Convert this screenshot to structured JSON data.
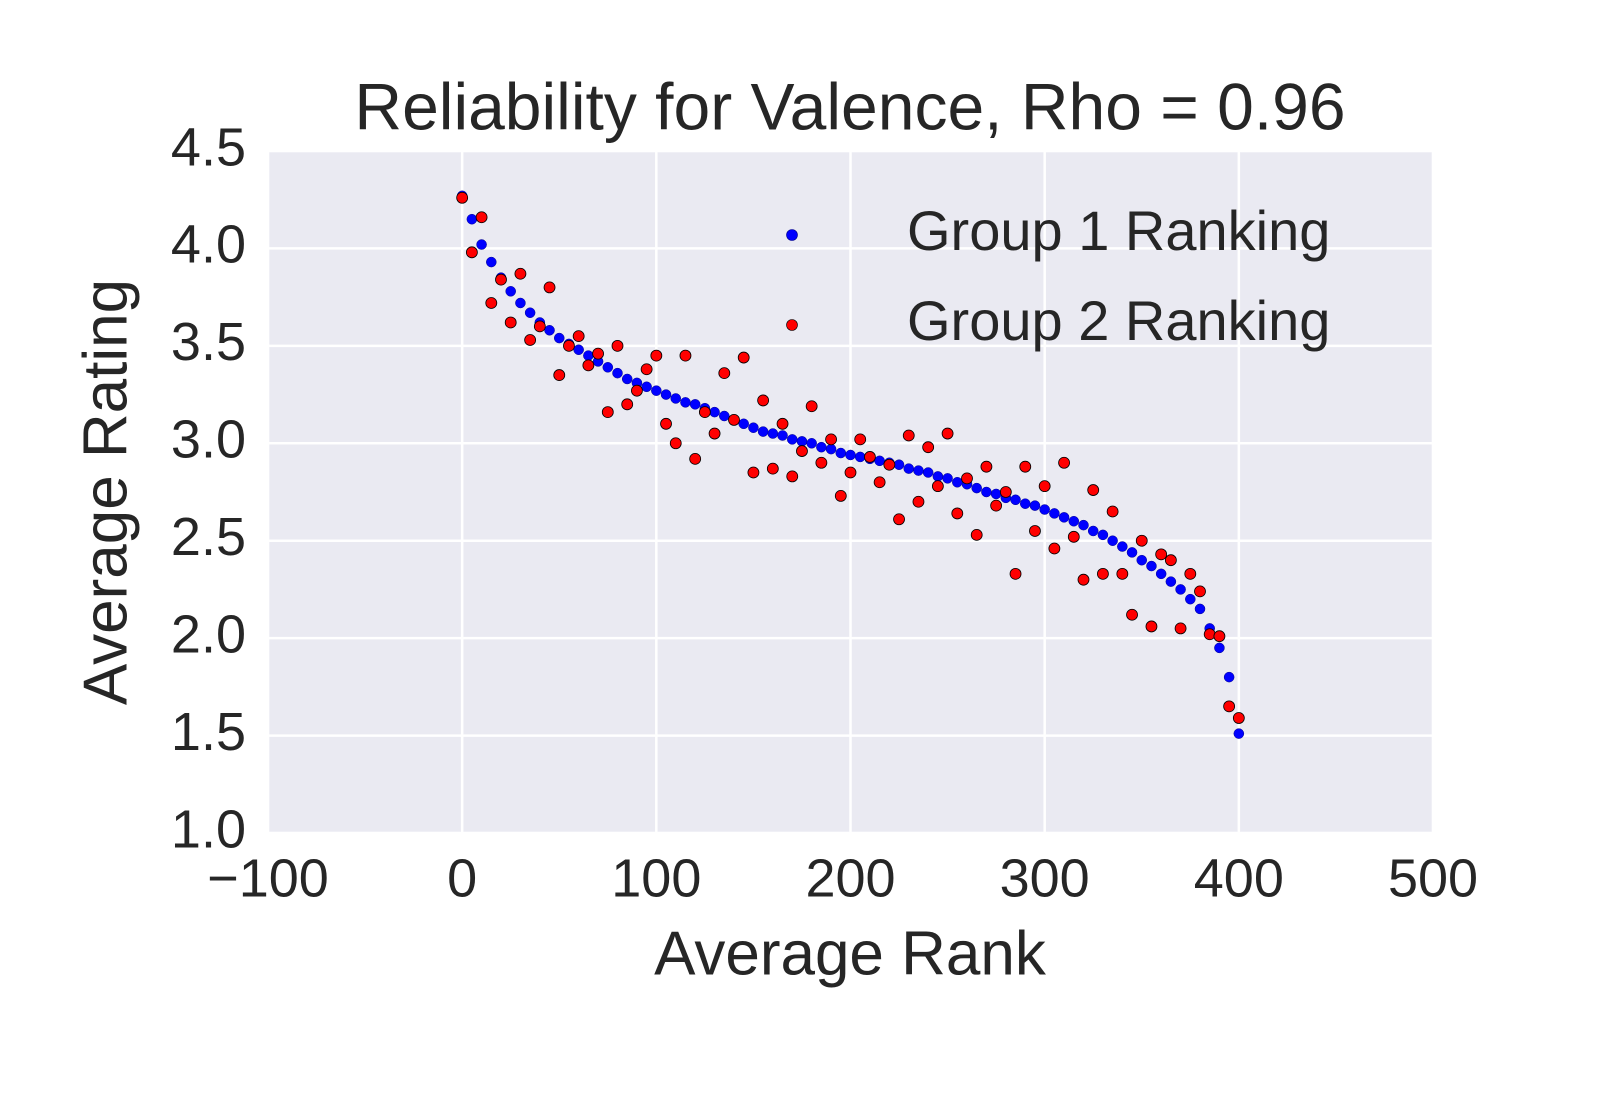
{
  "chart_data": {
    "type": "scatter",
    "title": "Reliability for Valence, Rho = 0.96",
    "x_label": "Average Rank",
    "y_label": "Average Rating",
    "x": [
      0,
      5,
      10,
      15,
      20,
      25,
      30,
      35,
      40,
      45,
      50,
      55,
      60,
      65,
      70,
      75,
      80,
      85,
      90,
      95,
      100,
      105,
      110,
      115,
      120,
      125,
      130,
      135,
      140,
      145,
      150,
      155,
      160,
      165,
      170,
      175,
      180,
      185,
      190,
      195,
      200,
      205,
      210,
      215,
      220,
      225,
      230,
      235,
      240,
      245,
      250,
      255,
      260,
      265,
      270,
      275,
      280,
      285,
      290,
      295,
      300,
      305,
      310,
      315,
      320,
      325,
      330,
      335,
      340,
      345,
      350,
      355,
      360,
      365,
      370,
      375,
      380,
      385,
      390,
      395,
      400
    ],
    "series": [
      {
        "name": "Group 1 Ranking",
        "color": "#0000ff",
        "values": [
          4.27,
          4.15,
          4.02,
          3.93,
          3.85,
          3.78,
          3.72,
          3.67,
          3.62,
          3.58,
          3.54,
          3.51,
          3.48,
          3.45,
          3.42,
          3.39,
          3.36,
          3.33,
          3.31,
          3.29,
          3.27,
          3.25,
          3.23,
          3.21,
          3.2,
          3.18,
          3.16,
          3.14,
          3.12,
          3.1,
          3.08,
          3.06,
          3.05,
          3.04,
          3.02,
          3.01,
          3.0,
          2.98,
          2.97,
          2.95,
          2.94,
          2.93,
          2.92,
          2.91,
          2.9,
          2.89,
          2.87,
          2.86,
          2.85,
          2.83,
          2.82,
          2.8,
          2.79,
          2.77,
          2.75,
          2.74,
          2.72,
          2.71,
          2.69,
          2.68,
          2.66,
          2.64,
          2.62,
          2.6,
          2.58,
          2.55,
          2.53,
          2.5,
          2.47,
          2.44,
          2.4,
          2.37,
          2.33,
          2.29,
          2.25,
          2.2,
          2.15,
          2.05,
          1.95,
          1.8,
          1.51
        ]
      },
      {
        "name": "Group 2 Ranking",
        "color": "#ff0000",
        "values": [
          4.26,
          3.98,
          4.16,
          3.72,
          3.84,
          3.62,
          3.87,
          3.53,
          3.6,
          3.8,
          3.35,
          3.5,
          3.55,
          3.4,
          3.46,
          3.16,
          3.5,
          3.2,
          3.27,
          3.38,
          3.45,
          3.1,
          3.0,
          3.45,
          2.92,
          3.16,
          3.05,
          3.36,
          3.12,
          3.44,
          2.85,
          3.22,
          2.87,
          3.1,
          2.83,
          2.96,
          3.19,
          2.9,
          3.02,
          2.73,
          2.85,
          3.02,
          2.93,
          2.8,
          2.89,
          2.61,
          3.04,
          2.7,
          2.98,
          2.78,
          3.05,
          2.64,
          2.82,
          2.53,
          2.88,
          2.68,
          2.75,
          2.33,
          2.88,
          2.55,
          2.78,
          2.46,
          2.9,
          2.52,
          2.3,
          2.76,
          2.33,
          2.65,
          2.33,
          2.12,
          2.5,
          2.06,
          2.43,
          2.4,
          2.05,
          2.33,
          2.24,
          2.02,
          2.01,
          1.65,
          1.59
        ]
      }
    ],
    "xlim": [
      -100,
      500
    ],
    "xticks": [
      {
        "value": -100,
        "label": "−100"
      },
      0,
      100,
      200,
      300,
      400,
      500
    ],
    "ylim": [
      1.0,
      4.5
    ],
    "yticks": [
      {
        "value": 1.0,
        "label": "1.0"
      },
      {
        "value": 1.5,
        "label": "1.5"
      },
      {
        "value": 2.0,
        "label": "2.0"
      },
      {
        "value": 2.5,
        "label": "2.5"
      },
      {
        "value": 3.0,
        "label": "3.0"
      },
      {
        "value": 3.5,
        "label": "3.5"
      },
      {
        "value": 4.0,
        "label": "4.0"
      },
      {
        "value": 4.5,
        "label": "4.5"
      }
    ],
    "grid": true,
    "legend": "upper right"
  }
}
